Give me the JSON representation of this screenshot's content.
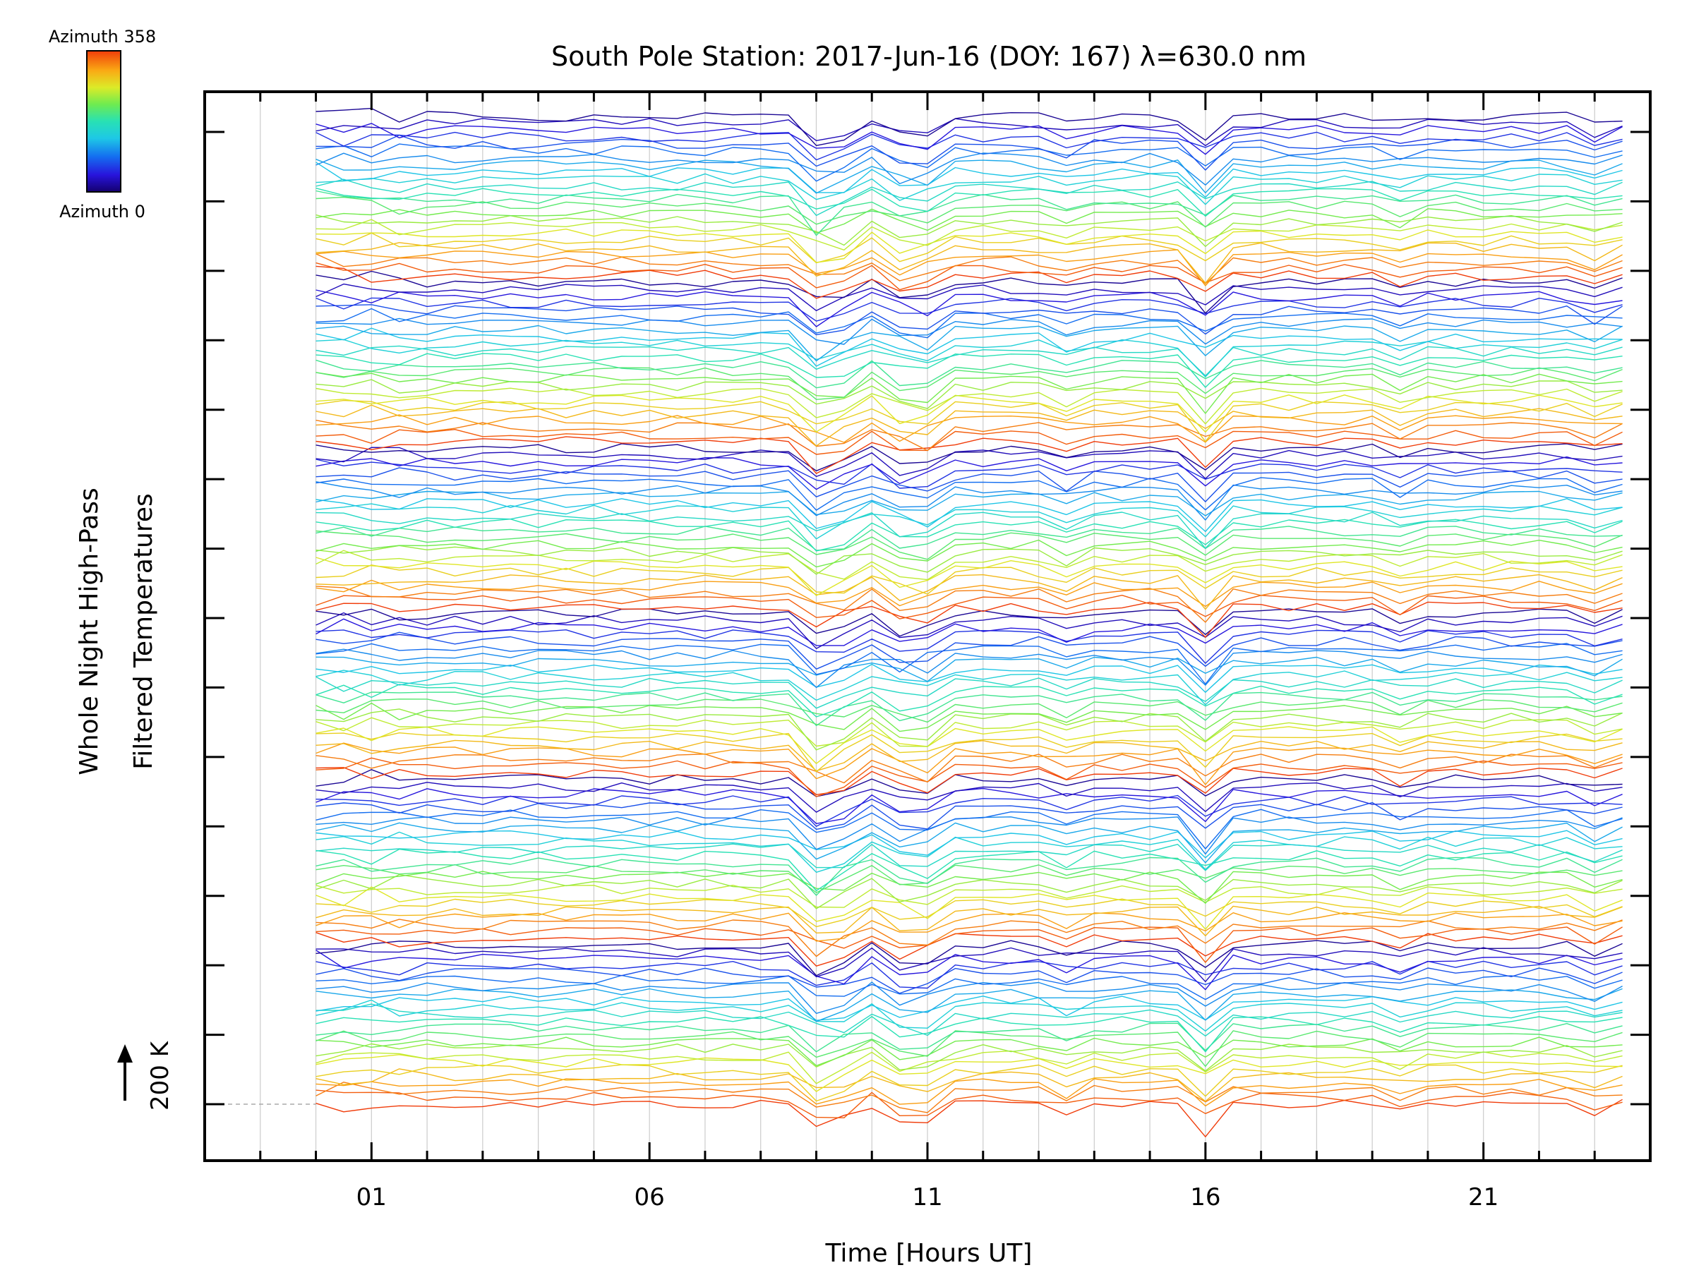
{
  "chart_data": {
    "type": "line",
    "title": "South Pole Station: 2017-Jun-16 (DOY: 167) λ=630.0 nm",
    "xlabel": "Time [Hours UT]",
    "ylabel_line1": "Whole Night High-Pass",
    "ylabel_line2": "Filtered Temperatures",
    "scale_label": "200 K",
    "xlim": [
      -2,
      24
    ],
    "x_tick_labels": [
      {
        "value": 1,
        "label": "01"
      },
      {
        "value": 6,
        "label": "06"
      },
      {
        "value": 11,
        "label": "11"
      },
      {
        "value": 16,
        "label": "16"
      },
      {
        "value": 21,
        "label": "21"
      }
    ],
    "data_start_hour": 0,
    "data_end_hour": 23.9,
    "sample_interval_hours": 0.5,
    "stacked_offset_K": 200,
    "y_major_tick_count": 15,
    "series_count": 144,
    "azimuth_range": [
      0,
      358
    ],
    "colorbar": {
      "top_label": "Azimuth 358",
      "bottom_label": "Azimuth 0",
      "colormap": "rainbow"
    },
    "dip_event_hours": [
      9.0,
      9.6,
      10.4,
      10.9,
      13.3,
      16.0,
      19.7,
      23.2
    ]
  },
  "colors": {
    "background": "#ffffff",
    "axis": "#000000",
    "gridline": "#cccccc",
    "baseline": "#aaaaaa"
  }
}
